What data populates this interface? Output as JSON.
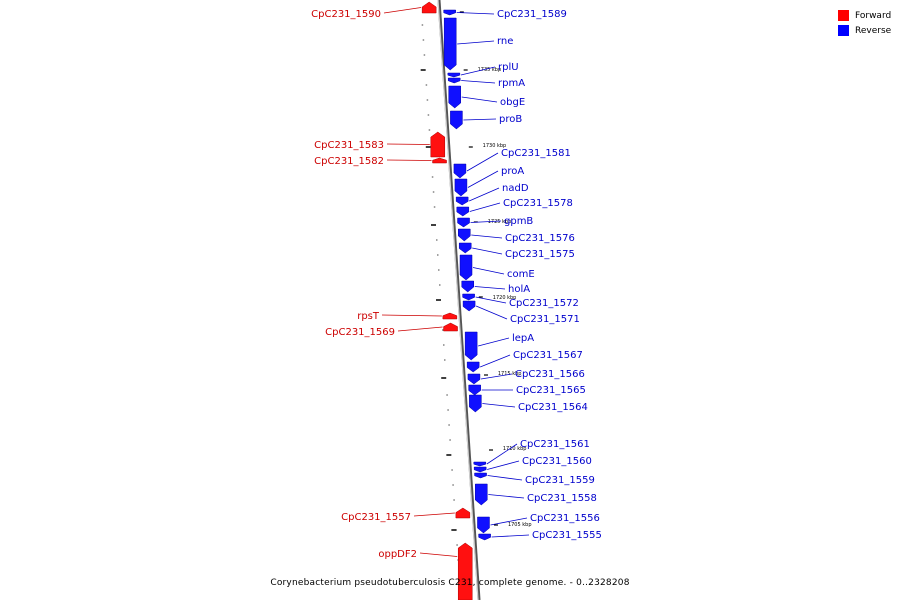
{
  "legend": {
    "forward": {
      "label": "Forward",
      "color": "#ff0000"
    },
    "reverse": {
      "label": "Reverse",
      "color": "#0000ff"
    }
  },
  "caption": "Corynebacterium pseudotuberculosis C231, complete genome. - 0..2328208",
  "ticks": [
    "1735 kbp",
    "1730 kbp",
    "1725 kbp",
    "1720 kbp",
    "1715 kbp",
    "1710 kbp",
    "1705 kbp"
  ],
  "forward_genes": [
    "CpC231_1590",
    "CpC231_1583",
    "CpC231_1582",
    "rpsT",
    "CpC231_1569",
    "CpC231_1557",
    "oppDF2"
  ],
  "reverse_genes": [
    "CpC231_1589",
    "rne",
    "rplU",
    "rpmA",
    "obgE",
    "proB",
    "CpC231_1581",
    "proA",
    "nadD",
    "CpC231_1578",
    "gpmB",
    "CpC231_1576",
    "CpC231_1575",
    "comE",
    "holA",
    "CpC231_1572",
    "CpC231_1571",
    "lepA",
    "CpC231_1567",
    "CpC231_1566",
    "CpC231_1565",
    "CpC231_1564",
    "CpC231_1561",
    "CpC231_1560",
    "CpC231_1559",
    "CpC231_1558",
    "CpC231_1556",
    "CpC231_1555"
  ]
}
